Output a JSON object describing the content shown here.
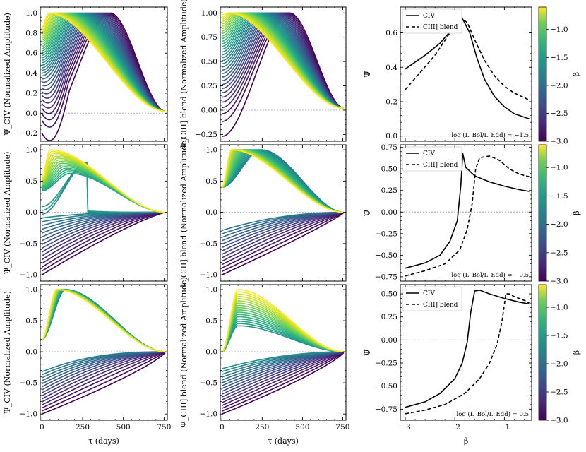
{
  "figure": {
    "xlabel_tau": "τ (days)",
    "xlabel_beta": "β",
    "colorbar_label": "β",
    "ylabel_civ": "Ψ_CIV (Normalized Amplitude)",
    "ylabel_ciii": "Ψ_CIII] blend (Normalized Amplitude)",
    "ylabel_psi": "Ψ̄",
    "legend": [
      "CIV",
      "CIII] blend"
    ],
    "colors": {
      "viridis_low": "#440154",
      "viridis_mid": "#21918c",
      "viridis_high": "#fde725",
      "refline": "#bbbbbb"
    }
  },
  "chart_data": [
    {
      "id": "civ_top",
      "type": "line",
      "colormap": "viridis",
      "series_count": 34,
      "color_range": [
        -3.0,
        -0.6
      ],
      "xlim": [
        -10,
        770
      ],
      "ylim": [
        -0.28,
        1.06
      ],
      "xticks": [
        0,
        250,
        500,
        750
      ],
      "yticks": [
        -0.2,
        0.0,
        0.2,
        0.4,
        0.6,
        0.8,
        1.0
      ],
      "ytick_labels": [
        "−0.2",
        "0.0",
        "0.2",
        "0.4",
        "0.6",
        "0.8",
        "1.0"
      ]
    },
    {
      "id": "ciii_top",
      "type": "line",
      "colormap": "viridis",
      "series_count": 34,
      "color_range": [
        -3.0,
        -0.6
      ],
      "xlim": [
        -10,
        770
      ],
      "ylim": [
        -0.32,
        1.06
      ],
      "xticks": [
        0,
        250,
        500,
        750
      ],
      "yticks": [
        -0.25,
        0.0,
        0.25,
        0.5,
        0.75,
        1.0
      ],
      "ytick_labels": [
        "−0.25",
        "0.00",
        "0.25",
        "0.50",
        "0.75",
        "1.00"
      ]
    },
    {
      "id": "psi_top",
      "type": "line",
      "xlim": [
        -3.1,
        -0.45
      ],
      "ylim": [
        -0.03,
        0.75
      ],
      "xticks": [
        -3,
        -2,
        -1
      ],
      "xtick_labels": [
        "−3",
        "−2",
        "−1"
      ],
      "yticks": [
        0.0,
        0.2,
        0.4,
        0.6
      ],
      "ytick_labels": [
        "0.0",
        "0.2",
        "0.4",
        "0.6"
      ],
      "annotation": "log (L_Bol/L_Edd) = −1.5",
      "series": [
        {
          "name": "CIV",
          "style": "solid",
          "x": [
            -3.0,
            -2.6,
            -2.3,
            -2.0,
            -1.85,
            -1.7,
            -1.55,
            -1.4,
            -1.2,
            -1.0,
            -0.8,
            -0.5
          ],
          "y": [
            0.39,
            0.47,
            0.54,
            0.64,
            0.685,
            0.6,
            0.45,
            0.33,
            0.23,
            0.17,
            0.13,
            0.1
          ]
        },
        {
          "name": "CIII] blend",
          "style": "dashed",
          "x": [
            -3.0,
            -2.7,
            -2.4,
            -2.1,
            -1.9,
            -1.75,
            -1.6,
            -1.4,
            -1.2,
            -1.0,
            -0.8,
            -0.5
          ],
          "y": [
            0.27,
            0.37,
            0.47,
            0.6,
            0.69,
            0.66,
            0.56,
            0.44,
            0.35,
            0.29,
            0.25,
            0.21
          ]
        }
      ]
    },
    {
      "id": "civ_mid",
      "type": "line",
      "colormap": "viridis",
      "series_count": 34,
      "color_range": [
        -3.0,
        -0.6
      ],
      "xlim": [
        -10,
        770
      ],
      "ylim": [
        -1.1,
        1.08
      ],
      "xticks": [
        0,
        250,
        500,
        750
      ],
      "yticks": [
        -1.0,
        -0.5,
        0.0,
        0.5,
        1.0
      ],
      "ytick_labels": [
        "−1.0",
        "−0.5",
        "0.0",
        "0.5",
        "1.0"
      ]
    },
    {
      "id": "ciii_mid",
      "type": "line",
      "colormap": "viridis",
      "series_count": 34,
      "color_range": [
        -3.0,
        -0.6
      ],
      "xlim": [
        -10,
        770
      ],
      "ylim": [
        -1.1,
        1.08
      ],
      "xticks": [
        0,
        250,
        500,
        750
      ],
      "yticks": [
        -1.0,
        -0.5,
        0.0,
        0.5,
        1.0
      ],
      "ytick_labels": [
        "−1.0",
        "−0.5",
        "0.0",
        "0.5",
        "1.0"
      ]
    },
    {
      "id": "psi_mid",
      "type": "line",
      "xlim": [
        -3.1,
        -0.45
      ],
      "ylim": [
        -0.8,
        0.78
      ],
      "xticks": [
        -3,
        -2,
        -1
      ],
      "xtick_labels": [
        "−3",
        "−2",
        "−1"
      ],
      "yticks": [
        -0.75,
        -0.5,
        -0.25,
        0.0,
        0.25,
        0.5,
        0.75
      ],
      "ytick_labels": [
        "−0.75",
        "−0.50",
        "−0.25",
        "0.00",
        "0.25",
        "0.50",
        "0.75"
      ],
      "annotation": "log (L_Bol/L_Edd) = −0.5",
      "series": [
        {
          "name": "CIV",
          "style": "solid",
          "x": [
            -3.0,
            -2.6,
            -2.3,
            -2.1,
            -1.95,
            -1.88,
            -1.84,
            -1.78,
            -1.6,
            -1.3,
            -1.0,
            -0.7,
            -0.5
          ],
          "y": [
            -0.65,
            -0.59,
            -0.5,
            -0.34,
            -0.1,
            0.3,
            0.68,
            0.52,
            0.42,
            0.35,
            0.3,
            0.26,
            0.24
          ]
        },
        {
          "name": "CIII] blend",
          "style": "dashed",
          "x": [
            -3.0,
            -2.6,
            -2.2,
            -1.9,
            -1.75,
            -1.65,
            -1.58,
            -1.5,
            -1.3,
            -1.1,
            -0.9,
            -0.7,
            -0.5
          ],
          "y": [
            -0.74,
            -0.68,
            -0.6,
            -0.44,
            -0.2,
            0.1,
            0.5,
            0.63,
            0.65,
            0.6,
            0.5,
            0.44,
            0.41
          ]
        }
      ]
    },
    {
      "id": "civ_bot",
      "type": "line",
      "colormap": "viridis",
      "series_count": 34,
      "color_range": [
        -3.0,
        -0.6
      ],
      "xlim": [
        -10,
        770
      ],
      "ylim": [
        -1.1,
        1.08
      ],
      "xticks": [
        0,
        250,
        500,
        750
      ],
      "yticks": [
        -1.0,
        -0.5,
        0.0,
        0.5,
        1.0
      ],
      "ytick_labels": [
        "−1.0",
        "−0.5",
        "0.0",
        "0.5",
        "1.0"
      ]
    },
    {
      "id": "ciii_bot",
      "type": "line",
      "colormap": "viridis",
      "series_count": 34,
      "color_range": [
        -3.0,
        -0.6
      ],
      "xlim": [
        -10,
        770
      ],
      "ylim": [
        -1.1,
        1.08
      ],
      "xticks": [
        0,
        250,
        500,
        750
      ],
      "yticks": [
        -1.0,
        -0.5,
        0.0,
        0.5,
        1.0
      ],
      "ytick_labels": [
        "−1.0",
        "−0.5",
        "0.0",
        "0.5",
        "1.0"
      ]
    },
    {
      "id": "psi_bot",
      "type": "line",
      "xlim": [
        -3.1,
        -0.45
      ],
      "ylim": [
        -0.87,
        0.6
      ],
      "xticks": [
        -3,
        -2,
        -1
      ],
      "xtick_labels": [
        "−3",
        "−2",
        "−1"
      ],
      "yticks": [
        -0.75,
        -0.5,
        -0.25,
        0.0,
        0.25,
        0.5
      ],
      "ytick_labels": [
        "−0.75",
        "−0.50",
        "−0.25",
        "0.00",
        "0.25",
        "0.50"
      ],
      "annotation": "log (L_Bol/L_Edd) = 0.5",
      "series": [
        {
          "name": "CIV",
          "style": "solid",
          "x": [
            -3.0,
            -2.6,
            -2.3,
            -2.0,
            -1.85,
            -1.75,
            -1.68,
            -1.6,
            -1.5,
            -1.3,
            -1.0,
            -0.7,
            -0.5
          ],
          "y": [
            -0.73,
            -0.67,
            -0.58,
            -0.42,
            -0.25,
            -0.02,
            0.3,
            0.53,
            0.54,
            0.5,
            0.45,
            0.41,
            0.39
          ]
        },
        {
          "name": "CIII] blend",
          "style": "dashed",
          "x": [
            -3.0,
            -2.6,
            -2.2,
            -1.8,
            -1.5,
            -1.3,
            -1.15,
            -1.05,
            -0.97,
            -0.9,
            -0.8,
            -0.6,
            -0.5
          ],
          "y": [
            -0.8,
            -0.76,
            -0.7,
            -0.58,
            -0.42,
            -0.25,
            -0.05,
            0.2,
            0.5,
            0.5,
            0.47,
            0.43,
            0.4
          ]
        }
      ]
    }
  ],
  "colorbars": [
    {
      "id": "cb_top",
      "ticks": [
        -3.0,
        -2.5,
        -2.0,
        -1.5,
        -1.0
      ],
      "tick_labels": [
        "−3.0",
        "−2.5",
        "−2.0",
        "−1.5",
        "−1.0"
      ],
      "range": [
        -3.0,
        -0.6
      ]
    },
    {
      "id": "cb_mid",
      "ticks": [
        -3.0,
        -2.5,
        -2.0,
        -1.5,
        -1.0
      ],
      "tick_labels": [
        "−3.0",
        "−2.5",
        "−2.0",
        "−1.5",
        "−1.0"
      ],
      "range": [
        -3.0,
        -0.6
      ]
    },
    {
      "id": "cb_bot",
      "ticks": [
        -3.0,
        -2.5,
        -2.0,
        -1.5,
        -1.0
      ],
      "tick_labels": [
        "−3.0",
        "−2.5",
        "−2.0",
        "−1.5",
        "−1.0"
      ],
      "range": [
        -3.0,
        -0.6
      ]
    }
  ]
}
